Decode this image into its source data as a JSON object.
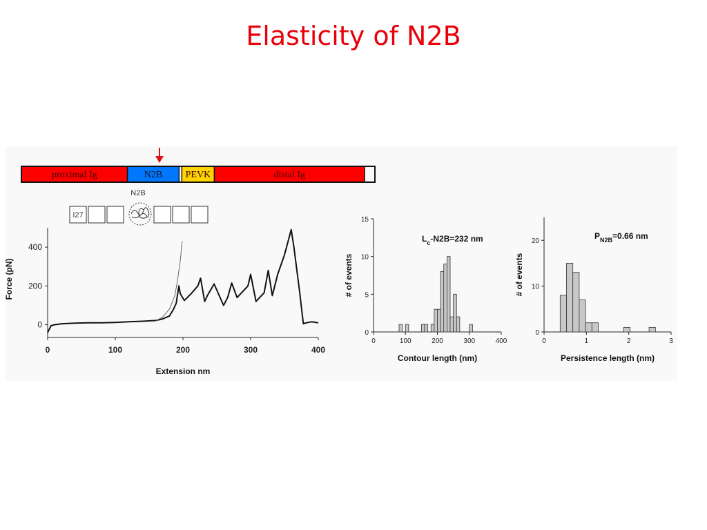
{
  "slide": {
    "title": "Elasticity of N2B"
  },
  "domain_bar": {
    "segments": [
      {
        "label": "proximal Ig",
        "color": "#ff0000",
        "width_frac": 0.3
      },
      {
        "label": "N2B",
        "color": "#0077ff",
        "width_frac": 0.146
      },
      {
        "label": "PEVK",
        "color": "#ffd400",
        "width_frac": 0.092
      },
      {
        "label": "distal Ig",
        "color": "#ff0000",
        "width_frac": 0.425
      }
    ],
    "arrow_color": "#e01010"
  },
  "construct": {
    "n2b_label": "N2B",
    "first_module_label": "I27",
    "modules_left": 3,
    "modules_right": 3
  },
  "chart_data": [
    {
      "type": "line",
      "xlabel": "Extension nm",
      "ylabel": "Force (pN)",
      "xlim": [
        0,
        400
      ],
      "ylim": [
        -30,
        500
      ],
      "xticks": [
        0,
        100,
        200,
        300,
        400
      ],
      "yticks": [
        0,
        200,
        400
      ],
      "series": [
        {
          "x": [
            0,
            5,
            10,
            20,
            40,
            60,
            80,
            100,
            120,
            140,
            160,
            170,
            180,
            186,
            190,
            194,
            196,
            202,
            212,
            222,
            226,
            232,
            236,
            246,
            260,
            266,
            272,
            280,
            296,
            300,
            308,
            320,
            326,
            332,
            340,
            350,
            360,
            364,
            372,
            378,
            382,
            390,
            400
          ],
          "y": [
            -40,
            -5,
            0,
            5,
            8,
            10,
            10,
            12,
            15,
            18,
            22,
            30,
            45,
            80,
            110,
            200,
            160,
            125,
            160,
            200,
            240,
            120,
            150,
            210,
            100,
            140,
            215,
            140,
            200,
            260,
            120,
            165,
            280,
            150,
            260,
            360,
            490,
            400,
            180,
            5,
            10,
            15,
            10
          ]
        },
        {
          "x": [
            160,
            170,
            180,
            188,
            192,
            196,
            198,
            199
          ],
          "y": [
            20,
            40,
            80,
            150,
            230,
            330,
            400,
            430
          ]
        }
      ]
    },
    {
      "type": "bar",
      "annotation": "Lc-N2B=232 nm",
      "xlabel": "Contour length (nm)",
      "ylabel": "# of events",
      "xlim": [
        0,
        400
      ],
      "ylim": [
        0,
        15
      ],
      "xticks": [
        0,
        100,
        200,
        300,
        400
      ],
      "yticks": [
        0,
        5,
        10,
        15
      ],
      "bin_width": 10,
      "bins": [
        [
          80,
          1
        ],
        [
          100,
          1
        ],
        [
          150,
          1
        ],
        [
          160,
          1
        ],
        [
          180,
          1
        ],
        [
          190,
          3
        ],
        [
          200,
          3
        ],
        [
          210,
          8
        ],
        [
          220,
          9
        ],
        [
          230,
          10
        ],
        [
          240,
          2
        ],
        [
          250,
          5
        ],
        [
          260,
          2
        ],
        [
          300,
          1
        ]
      ]
    },
    {
      "type": "bar",
      "annotation": "PN2B=0.66 nm",
      "xlabel": "Persistence length (nm)",
      "ylabel": "# of events",
      "xlim": [
        0,
        3
      ],
      "ylim": [
        0,
        25
      ],
      "xticks": [
        0,
        1,
        2,
        3
      ],
      "yticks": [
        0,
        10,
        20
      ],
      "bin_width": 0.15,
      "bins": [
        [
          0.38,
          8
        ],
        [
          0.53,
          15
        ],
        [
          0.68,
          13
        ],
        [
          0.83,
          7
        ],
        [
          0.98,
          2
        ],
        [
          1.13,
          2
        ],
        [
          1.88,
          1
        ],
        [
          2.48,
          1
        ]
      ]
    }
  ]
}
